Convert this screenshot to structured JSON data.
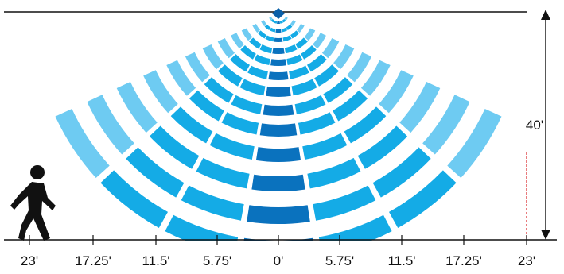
{
  "height_label": "40'",
  "range_labels": [
    "23'",
    "17.25'",
    "11.5'",
    "5.75'",
    "0'",
    "5.75'",
    "11.5'",
    "17.25'",
    "23'"
  ],
  "colors": {
    "outer": "#6ecbf2",
    "middle": "#14abe6",
    "inner": "#0a72be",
    "sensor": "#0a5fa8",
    "line": "#111111",
    "marker": "#d9262a",
    "person": "#111111"
  },
  "icons": {
    "sensor": "sensor-diamond-icon",
    "person": "walking-person-icon"
  }
}
